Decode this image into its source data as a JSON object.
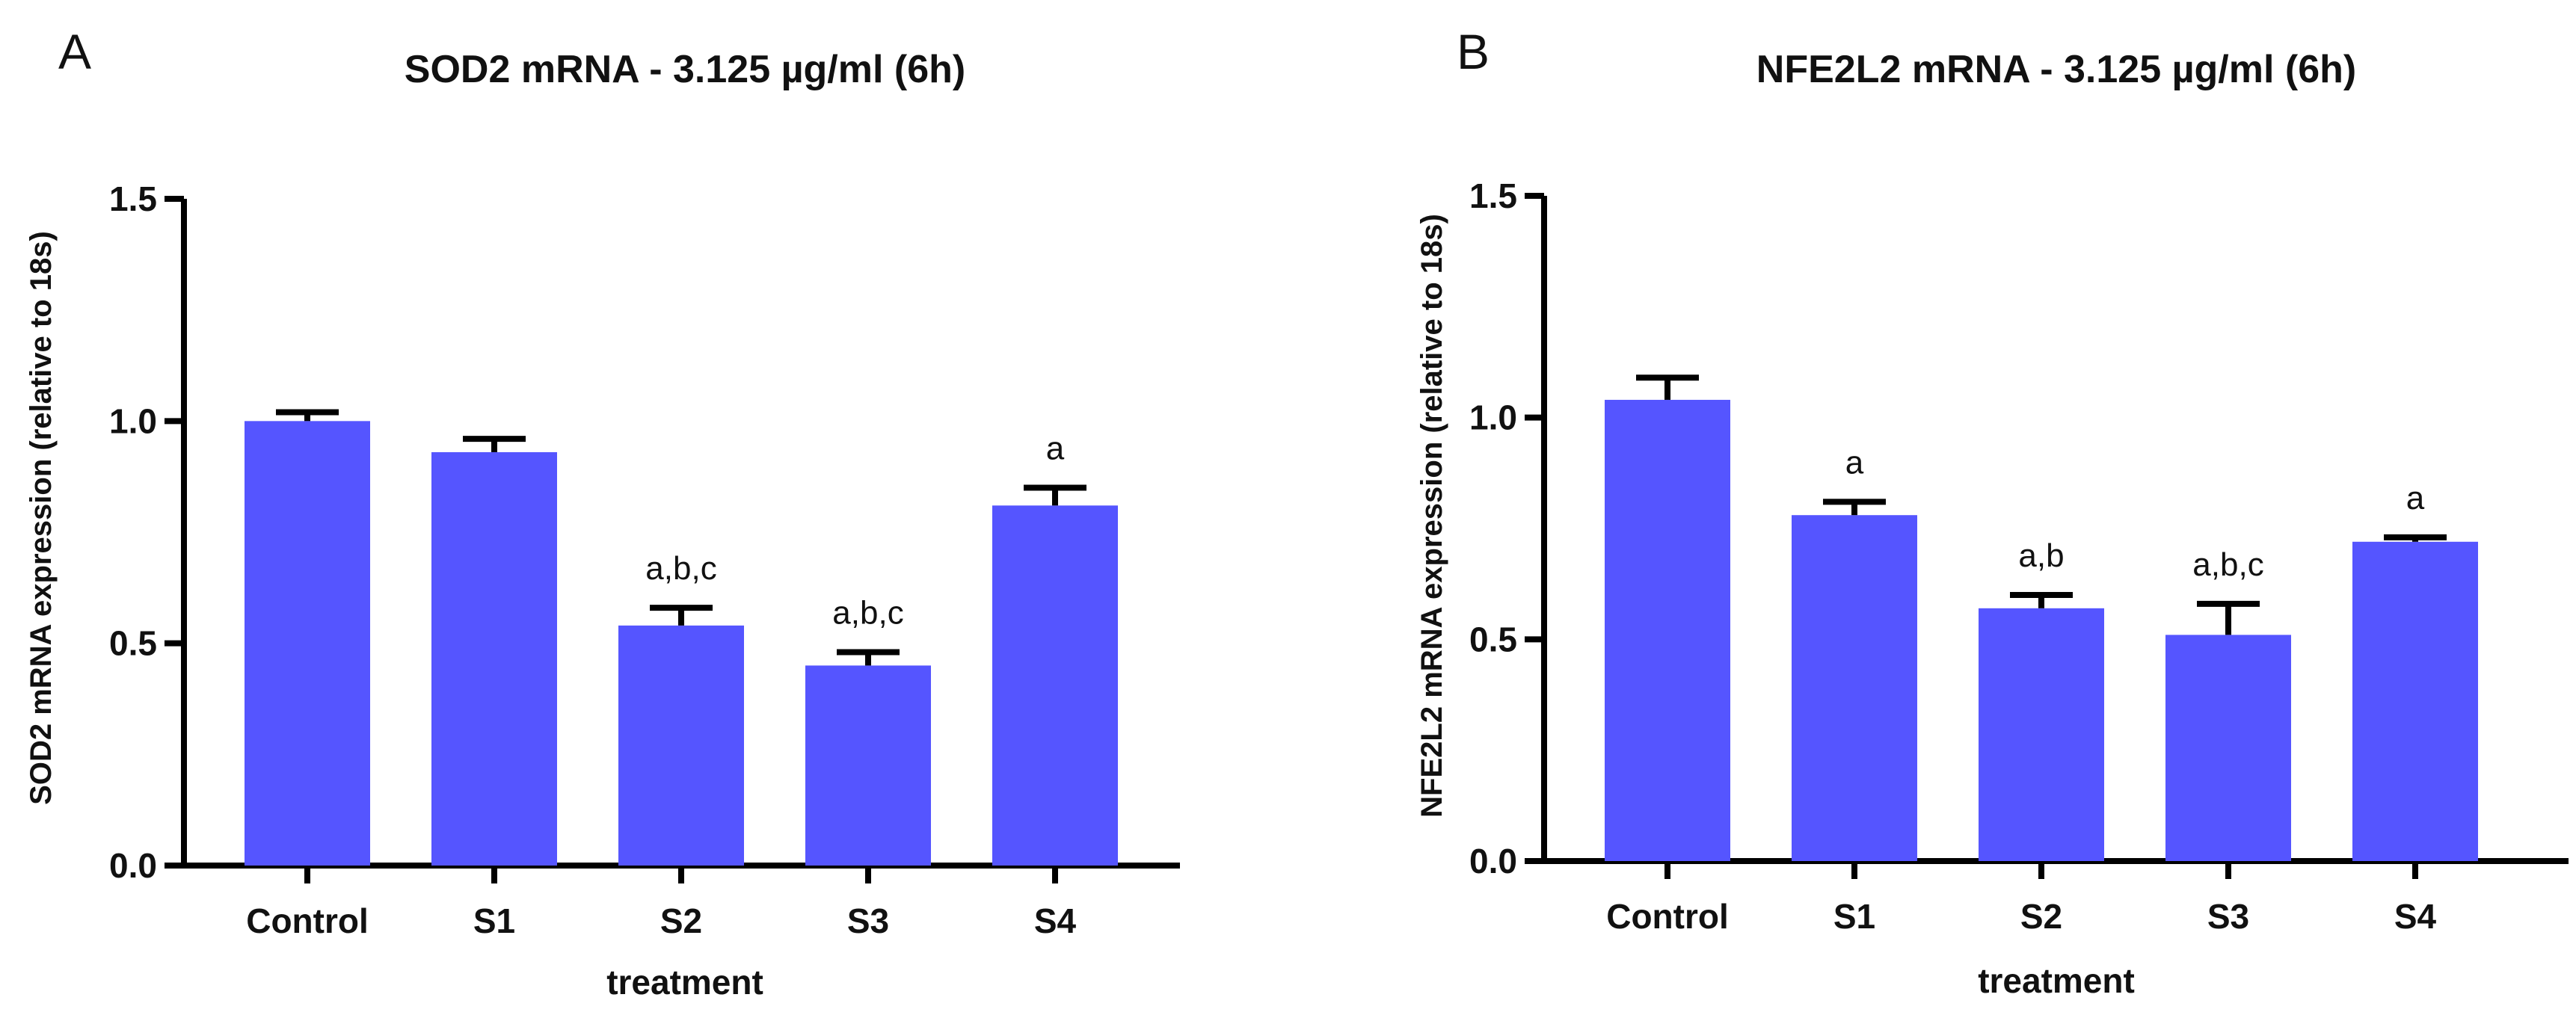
{
  "colors": {
    "bar": "#5555ff",
    "axis": "#000000",
    "text": "#111111"
  },
  "chart_data": [
    {
      "type": "bar",
      "panel_letter": "A",
      "title": "SOD2 mRNA - 3.125 µg/ml (6h)",
      "xlabel": "treatment",
      "ylabel": "SOD2 mRNA expression (relative to 18s)",
      "ylim": [
        0,
        1.5
      ],
      "yticks": [
        "0.0",
        "0.5",
        "1.0",
        "1.5"
      ],
      "grid": false,
      "categories": [
        "Control",
        "S1",
        "S2",
        "S3",
        "S4"
      ],
      "values": [
        1.0,
        0.93,
        0.54,
        0.45,
        0.81
      ],
      "errors": [
        0.02,
        0.03,
        0.04,
        0.03,
        0.04
      ],
      "annotations": [
        "",
        "",
        "a,b,c",
        "a,b,c",
        "a"
      ]
    },
    {
      "type": "bar",
      "panel_letter": "B",
      "title": "NFE2L2 mRNA - 3.125 µg/ml (6h)",
      "xlabel": "treatment",
      "ylabel": "NFE2L2 mRNA expression (relative to 18s)",
      "ylim": [
        0,
        1.5
      ],
      "yticks": [
        "0.0",
        "0.5",
        "1.0",
        "1.5"
      ],
      "grid": false,
      "categories": [
        "Control",
        "S1",
        "S2",
        "S3",
        "S4"
      ],
      "values": [
        1.04,
        0.78,
        0.57,
        0.51,
        0.72
      ],
      "errors": [
        0.05,
        0.03,
        0.03,
        0.07,
        0.01
      ],
      "annotations": [
        "",
        "a",
        "a,b",
        "a,b,c",
        "a"
      ]
    }
  ]
}
